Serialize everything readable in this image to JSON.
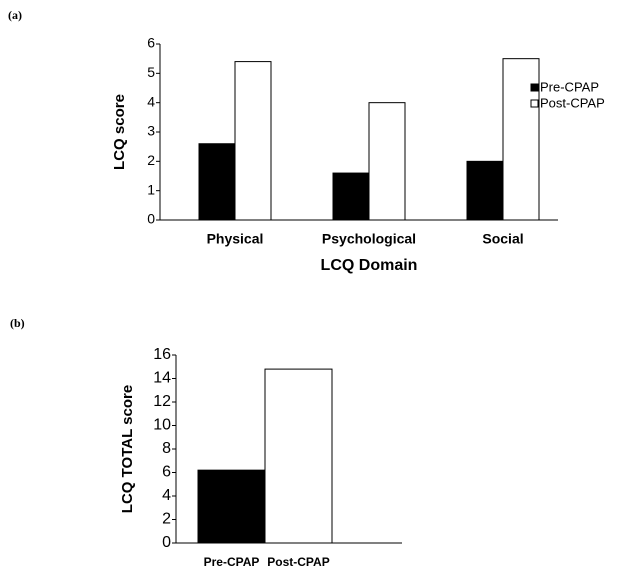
{
  "chart_data": [
    {
      "type": "bar",
      "panel_label": "(a)",
      "ylabel": "LCQ score",
      "xlabel": "LCQ Domain",
      "categories": [
        "Physical",
        "Psychological",
        "Social"
      ],
      "series": [
        {
          "name": "Pre-CPAP",
          "color": "#000000",
          "values": [
            2.6,
            1.6,
            2.0
          ]
        },
        {
          "name": "Post-CPAP",
          "color": "#ffffff",
          "values": [
            5.4,
            4.0,
            5.5
          ]
        }
      ],
      "ylim": [
        0,
        6
      ],
      "yticks": [
        0,
        1,
        2,
        3,
        4,
        5,
        6
      ],
      "legend": "right"
    },
    {
      "type": "bar",
      "panel_label": "(b)",
      "ylabel": "LCQ TOTAL score",
      "categories": [
        "Pre-CPAP",
        "Post-CPAP"
      ],
      "values": [
        6.2,
        14.8
      ],
      "colors": [
        "#000000",
        "#ffffff"
      ],
      "ylim": [
        0,
        16
      ],
      "yticks": [
        0,
        2,
        4,
        6,
        8,
        10,
        12,
        14,
        16
      ]
    }
  ]
}
